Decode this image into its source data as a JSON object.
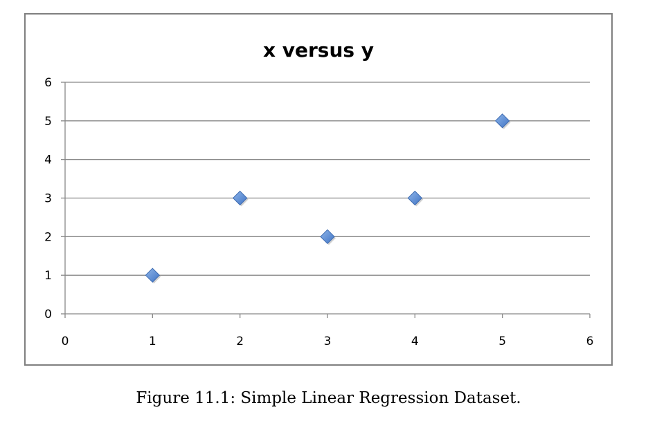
{
  "chart_data": {
    "type": "scatter",
    "title": "x versus y",
    "xlabel": "",
    "ylabel": "",
    "xlim": [
      0,
      6
    ],
    "ylim": [
      0,
      6
    ],
    "x_ticks": [
      0,
      1,
      2,
      3,
      4,
      5,
      6
    ],
    "y_ticks": [
      0,
      1,
      2,
      3,
      4,
      5,
      6
    ],
    "grid": "horizontal major gridlines",
    "legend": "none",
    "marker": "diamond",
    "series": [
      {
        "x": [
          1,
          2,
          3,
          4,
          5
        ],
        "y": [
          1,
          3,
          2,
          3,
          5
        ]
      }
    ]
  },
  "caption": "Figure 11.1: Simple Linear Regression Dataset.",
  "colors": {
    "marker_fill": "#5b8fd8",
    "marker_stroke": "#3c6ab0",
    "gridline": "#878787",
    "frame": "#7f7f7f"
  }
}
